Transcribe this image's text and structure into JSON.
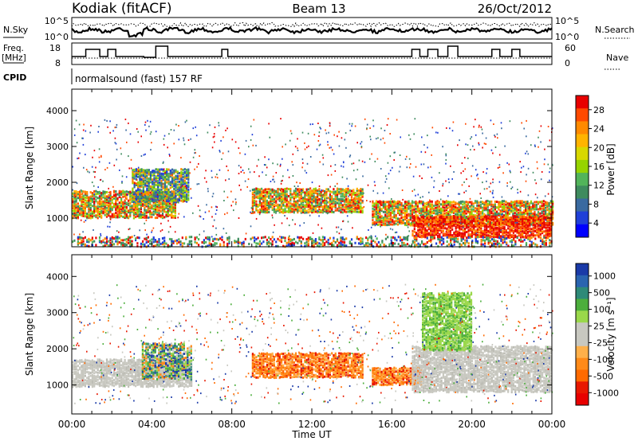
{
  "header": {
    "station": "Kodiak (fitACF)",
    "beam": "Beam 13",
    "date": "26/Oct/2012"
  },
  "strips": {
    "nsky_label": "N.Sky",
    "nsky_ticks": [
      "10^5",
      "10^0"
    ],
    "nsearch_label": "N.Search",
    "nsearch_ticks": [
      "10^5",
      "10^0"
    ],
    "freq_label": "Freq.",
    "freq_unit": "[MHz]",
    "freq_ticks": [
      "18",
      "8"
    ],
    "nave_label": "Nave",
    "nave_ticks": [
      "60",
      "0"
    ],
    "cpid_label": "CPID",
    "cpid_text": "normalsound (fast) 157 RF"
  },
  "chart_data": [
    {
      "type": "heatmap",
      "name": "power-panel",
      "ylabel": "Slant Range [km]",
      "xlabel": "",
      "x_range": [
        0,
        24
      ],
      "ylim": [
        200,
        4600
      ],
      "yticks": [
        1000,
        2000,
        3000,
        4000
      ],
      "colorbar": {
        "label": "Power [dB]",
        "ticks": [
          "28",
          "24",
          "20",
          "16",
          "12",
          "8",
          "4"
        ],
        "colors": [
          "#e80000",
          "#ff4a00",
          "#ff8a00",
          "#ffb400",
          "#d8d800",
          "#96d400",
          "#52b45a",
          "#3e8b5e",
          "#3a6aa0",
          "#2040d8",
          "#0000ff"
        ]
      },
      "bands": [
        {
          "t0": 0.0,
          "t1": 5.2,
          "r0": 1050,
          "r1": 1800,
          "level": "mixed-high"
        },
        {
          "t0": 3.0,
          "t1": 5.8,
          "r0": 1500,
          "r1": 2400,
          "level": "mixed-mid"
        },
        {
          "t0": 9.0,
          "t1": 14.5,
          "r0": 1200,
          "r1": 1850,
          "level": "mixed-high"
        },
        {
          "t0": 15.0,
          "t1": 24.0,
          "r0": 850,
          "r1": 1500,
          "level": "mixed-high"
        },
        {
          "t0": 17.0,
          "t1": 24.0,
          "r0": 500,
          "r1": 1100,
          "level": "high"
        },
        {
          "t0": 0.0,
          "t1": 24.0,
          "r0": 250,
          "r1": 500,
          "level": "scatter-low"
        }
      ]
    },
    {
      "type": "heatmap",
      "name": "velocity-panel",
      "ylabel": "Slant Range [km]",
      "xlabel": "Time UT",
      "x_range": [
        0,
        24
      ],
      "xticks": [
        "00:00",
        "04:00",
        "08:00",
        "12:00",
        "16:00",
        "20:00",
        "00:00"
      ],
      "ylim": [
        200,
        4600
      ],
      "yticks": [
        1000,
        2000,
        3000,
        4000
      ],
      "colorbar": {
        "label": "Velocity [m s⁻¹]",
        "ticks": [
          "1000",
          "500",
          "100",
          "25",
          "-25",
          "-100",
          "-500",
          "-1000"
        ],
        "colors": [
          "#1a3aa8",
          "#2a64b0",
          "#2e8a78",
          "#4cae3c",
          "#9ad84a",
          "#c8c8c0",
          "#c8c8c0",
          "#ffb04a",
          "#ff8a18",
          "#ff6a00",
          "#e81800",
          "#e80000"
        ]
      },
      "bands": [
        {
          "t0": 0.0,
          "t1": 6.0,
          "r0": 1000,
          "r1": 1750,
          "level": "grey"
        },
        {
          "t0": 3.5,
          "t1": 6.0,
          "r0": 1200,
          "r1": 2200,
          "level": "mixed"
        },
        {
          "t0": 9.0,
          "t1": 14.5,
          "r0": 1250,
          "r1": 1900,
          "level": "orange"
        },
        {
          "t0": 15.0,
          "t1": 17.5,
          "r0": 1050,
          "r1": 1500,
          "level": "orange"
        },
        {
          "t0": 17.0,
          "t1": 24.0,
          "r0": 850,
          "r1": 2100,
          "level": "grey"
        },
        {
          "t0": 17.5,
          "t1": 20.0,
          "r0": 2000,
          "r1": 3600,
          "level": "green"
        }
      ]
    }
  ]
}
